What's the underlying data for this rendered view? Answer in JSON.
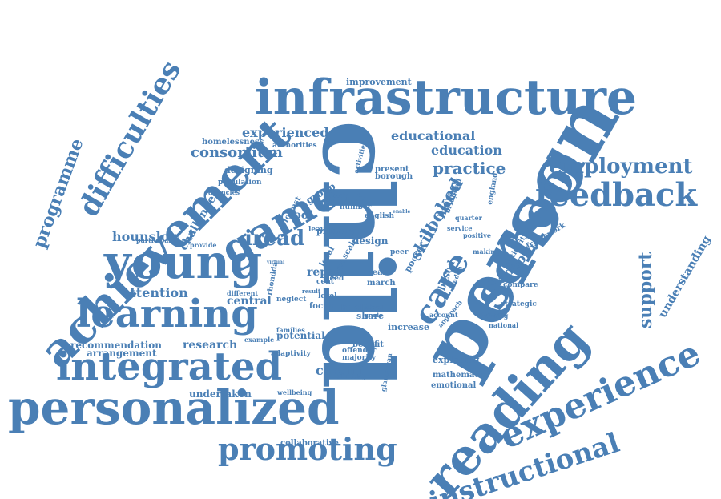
{
  "cloud": {
    "color": "#4a7fb5",
    "words": {
      "child": "child",
      "person": "person",
      "infrastructure": "infrastructure",
      "achievement": "achievement",
      "personalized": "personalized",
      "reading": "reading",
      "young": "young",
      "game": "game",
      "school": "school",
      "integrated": "integrated",
      "learning": "learning",
      "experience": "experience",
      "feedback": "feedback",
      "promoting": "promoting",
      "instructional": "instructional",
      "care": "care",
      "difficulties": "difficulties",
      "employment": "employment",
      "programme": "programme",
      "support": "support",
      "iread": "iread",
      "practice": "practice",
      "looked": "looked",
      "consortium": "consortium",
      "experienced": "experienced",
      "educational": "educational",
      "education": "education",
      "hounslow": "hounslow",
      "attention": "attention",
      "recommendation": "recommendation",
      "research": "research",
      "skill": "skill",
      "adaptive": "adaptive",
      "tool": "tool",
      "wale": "wale",
      "report": "report",
      "cardiff": "cardiff",
      "designing": "designing",
      "challenge": "challenge",
      "improvement": "improvement",
      "understanding": "understanding",
      "exploring": "exploring",
      "undertaken": "undertaken",
      "central": "central",
      "arrangement": "arrangement",
      "potential": "potential",
      "design": "design",
      "health": "health",
      "share": "share",
      "primary": "primary",
      "literacy": "literacy",
      "present": "present",
      "borough": "borough",
      "based": "based",
      "poorer": "poorer",
      "increase": "increase",
      "focus": "focus",
      "benefit": "benefit",
      "mathematic": "mathematic",
      "emotional": "emotional",
      "collaborative": "collaborative",
      "homelessness": "homelessness",
      "authorities": "authorities",
      "population": "population",
      "agencies": "agencies",
      "group": "group",
      "lowest": "lowest",
      "leaver": "leaver",
      "participant": "participant",
      "provide": "provide",
      "different": "different",
      "neglect": "neglect",
      "families": "families",
      "example": "example",
      "adaptivity": "adaptivity",
      "offender": "offender",
      "majority": "majority",
      "birthday": "birthday",
      "wellbeing": "wellbeing",
      "glamorgan": "glamorgan",
      "year": "year",
      "march": "march",
      "term": "term",
      "need": "need",
      "cent": "cent",
      "level": "level",
      "english": "english",
      "number": "number",
      "local": "local",
      "rhondda": "rhondda",
      "virtual": "virtual",
      "scale": "scale",
      "peer": "peer",
      "activities": "activities",
      "bridgend": "bridgend",
      "enable": "enable",
      "england": "england",
      "quarter": "quarter",
      "service": "service",
      "positive": "positive",
      "making": "making",
      "authority": "authority",
      "framework": "framework",
      "compare": "compare",
      "strategic": "strategic",
      "merthyr": "merthyr",
      "training": "training",
      "national": "national",
      "account": "account",
      "approach": "approach",
      "london": "london",
      "social": "social",
      "grade": "grade",
      "result": "result"
    }
  }
}
